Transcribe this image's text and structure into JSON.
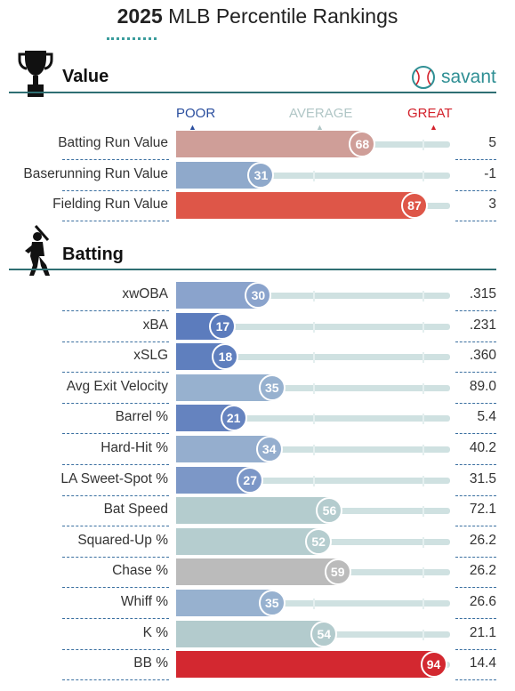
{
  "header": {
    "year": "2025",
    "title_rest": "MLB Percentile Rankings"
  },
  "brand": {
    "name": "savant",
    "icon": "baseball-icon",
    "color": "#2f8f94"
  },
  "scale": {
    "poor": "POOR",
    "average": "AVERAGE",
    "great": "GREAT",
    "poor_color": "#2a4e9e",
    "average_color": "#b0c6c6",
    "great_color": "#d3212b"
  },
  "sections": {
    "value": {
      "title": "Value",
      "icon": "trophy-icon"
    },
    "batting": {
      "title": "Batting",
      "icon": "batter-silhouette-icon"
    }
  },
  "chart_data": {
    "type": "bar",
    "title": "2025 MLB Percentile Rankings",
    "xlim": [
      0,
      100
    ],
    "groups": [
      {
        "name": "Value",
        "categories": [
          "Batting Run Value",
          "Baserunning Run Value",
          "Fielding Run Value"
        ],
        "percentiles": [
          68,
          31,
          87
        ],
        "values": [
          "5",
          "-1",
          "3"
        ],
        "colors": [
          "#cf9e98",
          "#8fa9cb",
          "#de5648"
        ]
      },
      {
        "name": "Batting",
        "categories": [
          "xwOBA",
          "xBA",
          "xSLG",
          "Avg Exit Velocity",
          "Barrel %",
          "Hard-Hit %",
          "LA Sweet-Spot %",
          "Bat Speed",
          "Squared-Up %",
          "Chase %",
          "Whiff %",
          "K %",
          "BB %"
        ],
        "percentiles": [
          30,
          17,
          18,
          35,
          21,
          34,
          27,
          56,
          52,
          59,
          35,
          54,
          94
        ],
        "values": [
          ".315",
          ".231",
          ".360",
          "89.0",
          "5.4",
          "40.2",
          "31.5",
          "72.1",
          "26.2",
          "26.2",
          "26.6",
          "21.1",
          "14.4"
        ],
        "colors": [
          "#8aa3cc",
          "#5c7cbd",
          "#5f7fbe",
          "#97b1cf",
          "#6583bf",
          "#95aece",
          "#7c97c7",
          "#b4ccce",
          "#b5cdcf",
          "#bbbbbb",
          "#97b1cf",
          "#b3cbcd",
          "#d32830"
        ]
      }
    ]
  }
}
